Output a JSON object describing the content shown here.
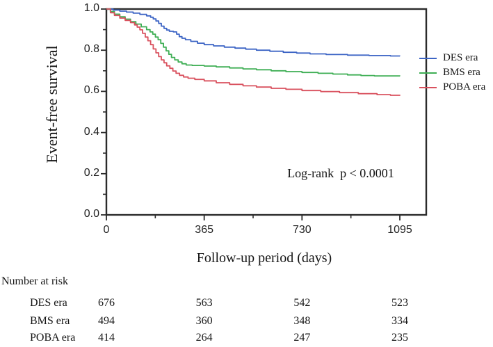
{
  "chart_data": {
    "type": "line",
    "subtype": "kaplan-meier-step",
    "title": "",
    "xlabel": "Follow-up period (days)",
    "ylabel": "Event-free survival",
    "annotation": "Log-rank  p < 0.0001",
    "xlim": [
      0,
      1190
    ],
    "ylim": [
      0.0,
      1.0
    ],
    "grid": false,
    "legend_position": "right-outside",
    "x_major_ticks": [
      0,
      365,
      730,
      1095
    ],
    "x_tick_labels": [
      "0",
      "365",
      "730",
      "1095"
    ],
    "x_minor_ticks": [
      182.5,
      547.5,
      912.5
    ],
    "y_major_ticks": [
      1.0,
      0.8,
      0.6,
      0.4,
      0.2,
      0.0
    ],
    "y_tick_labels": [
      "1.0",
      "0.8",
      "0.6",
      "0.4",
      "0.2",
      "0.0"
    ],
    "y_minor_ticks": [
      0.9,
      0.7,
      0.5,
      0.3,
      0.1
    ],
    "axis_color": "#2b2b2b",
    "series": [
      {
        "name": "DES era",
        "color": "#3d65c5",
        "points": [
          [
            0,
            1.0
          ],
          [
            25,
            0.995
          ],
          [
            50,
            0.99
          ],
          [
            75,
            0.985
          ],
          [
            100,
            0.98
          ],
          [
            125,
            0.974
          ],
          [
            150,
            0.967
          ],
          [
            165,
            0.96
          ],
          [
            175,
            0.952
          ],
          [
            185,
            0.942
          ],
          [
            195,
            0.93
          ],
          [
            205,
            0.917
          ],
          [
            215,
            0.906
          ],
          [
            225,
            0.898
          ],
          [
            235,
            0.892
          ],
          [
            250,
            0.889
          ],
          [
            262,
            0.878
          ],
          [
            272,
            0.866
          ],
          [
            282,
            0.858
          ],
          [
            295,
            0.851
          ],
          [
            315,
            0.843
          ],
          [
            340,
            0.834
          ],
          [
            365,
            0.827
          ],
          [
            400,
            0.821
          ],
          [
            440,
            0.815
          ],
          [
            480,
            0.81
          ],
          [
            520,
            0.805
          ],
          [
            560,
            0.8
          ],
          [
            610,
            0.795
          ],
          [
            660,
            0.79
          ],
          [
            710,
            0.786
          ],
          [
            760,
            0.782
          ],
          [
            820,
            0.779
          ],
          [
            900,
            0.776
          ],
          [
            980,
            0.774
          ],
          [
            1060,
            0.772
          ],
          [
            1095,
            0.771
          ]
        ]
      },
      {
        "name": "BMS era",
        "color": "#3eae54",
        "points": [
          [
            0,
            1.0
          ],
          [
            15,
            0.988
          ],
          [
            30,
            0.975
          ],
          [
            50,
            0.962
          ],
          [
            70,
            0.951
          ],
          [
            90,
            0.939
          ],
          [
            110,
            0.927
          ],
          [
            130,
            0.914
          ],
          [
            150,
            0.9
          ],
          [
            163,
            0.889
          ],
          [
            173,
            0.878
          ],
          [
            183,
            0.864
          ],
          [
            193,
            0.851
          ],
          [
            203,
            0.833
          ],
          [
            213,
            0.815
          ],
          [
            223,
            0.797
          ],
          [
            233,
            0.78
          ],
          [
            243,
            0.765
          ],
          [
            255,
            0.753
          ],
          [
            268,
            0.743
          ],
          [
            282,
            0.734
          ],
          [
            298,
            0.728
          ],
          [
            320,
            0.726
          ],
          [
            365,
            0.723
          ],
          [
            410,
            0.719
          ],
          [
            460,
            0.714
          ],
          [
            510,
            0.709
          ],
          [
            560,
            0.705
          ],
          [
            615,
            0.7
          ],
          [
            670,
            0.696
          ],
          [
            730,
            0.692
          ],
          [
            790,
            0.688
          ],
          [
            845,
            0.684
          ],
          [
            900,
            0.68
          ],
          [
            950,
            0.677
          ],
          [
            1000,
            0.675
          ],
          [
            1095,
            0.674
          ]
        ]
      },
      {
        "name": "POBA era",
        "color": "#d9515e",
        "points": [
          [
            0,
            1.0
          ],
          [
            15,
            0.982
          ],
          [
            30,
            0.969
          ],
          [
            50,
            0.956
          ],
          [
            70,
            0.945
          ],
          [
            90,
            0.934
          ],
          [
            105,
            0.923
          ],
          [
            115,
            0.912
          ],
          [
            125,
            0.899
          ],
          [
            135,
            0.882
          ],
          [
            145,
            0.864
          ],
          [
            155,
            0.846
          ],
          [
            165,
            0.827
          ],
          [
            175,
            0.806
          ],
          [
            185,
            0.787
          ],
          [
            195,
            0.769
          ],
          [
            205,
            0.753
          ],
          [
            215,
            0.739
          ],
          [
            225,
            0.724
          ],
          [
            237,
            0.712
          ],
          [
            248,
            0.699
          ],
          [
            260,
            0.688
          ],
          [
            273,
            0.678
          ],
          [
            288,
            0.67
          ],
          [
            305,
            0.664
          ],
          [
            330,
            0.658
          ],
          [
            365,
            0.651
          ],
          [
            410,
            0.642
          ],
          [
            460,
            0.634
          ],
          [
            510,
            0.627
          ],
          [
            560,
            0.621
          ],
          [
            615,
            0.615
          ],
          [
            670,
            0.61
          ],
          [
            730,
            0.604
          ],
          [
            800,
            0.599
          ],
          [
            870,
            0.594
          ],
          [
            940,
            0.589
          ],
          [
            1010,
            0.584
          ],
          [
            1060,
            0.581
          ],
          [
            1095,
            0.579
          ]
        ]
      }
    ]
  },
  "risk_table": {
    "title": "Number at risk",
    "columns": [
      "0",
      "365",
      "730",
      "1095"
    ],
    "rows": [
      {
        "label": "DES era",
        "values": [
          "676",
          "563",
          "542",
          "523"
        ]
      },
      {
        "label": "BMS era",
        "values": [
          "494",
          "360",
          "348",
          "334"
        ]
      },
      {
        "label": "POBA era",
        "values": [
          "414",
          "264",
          "247",
          "235"
        ]
      }
    ]
  }
}
